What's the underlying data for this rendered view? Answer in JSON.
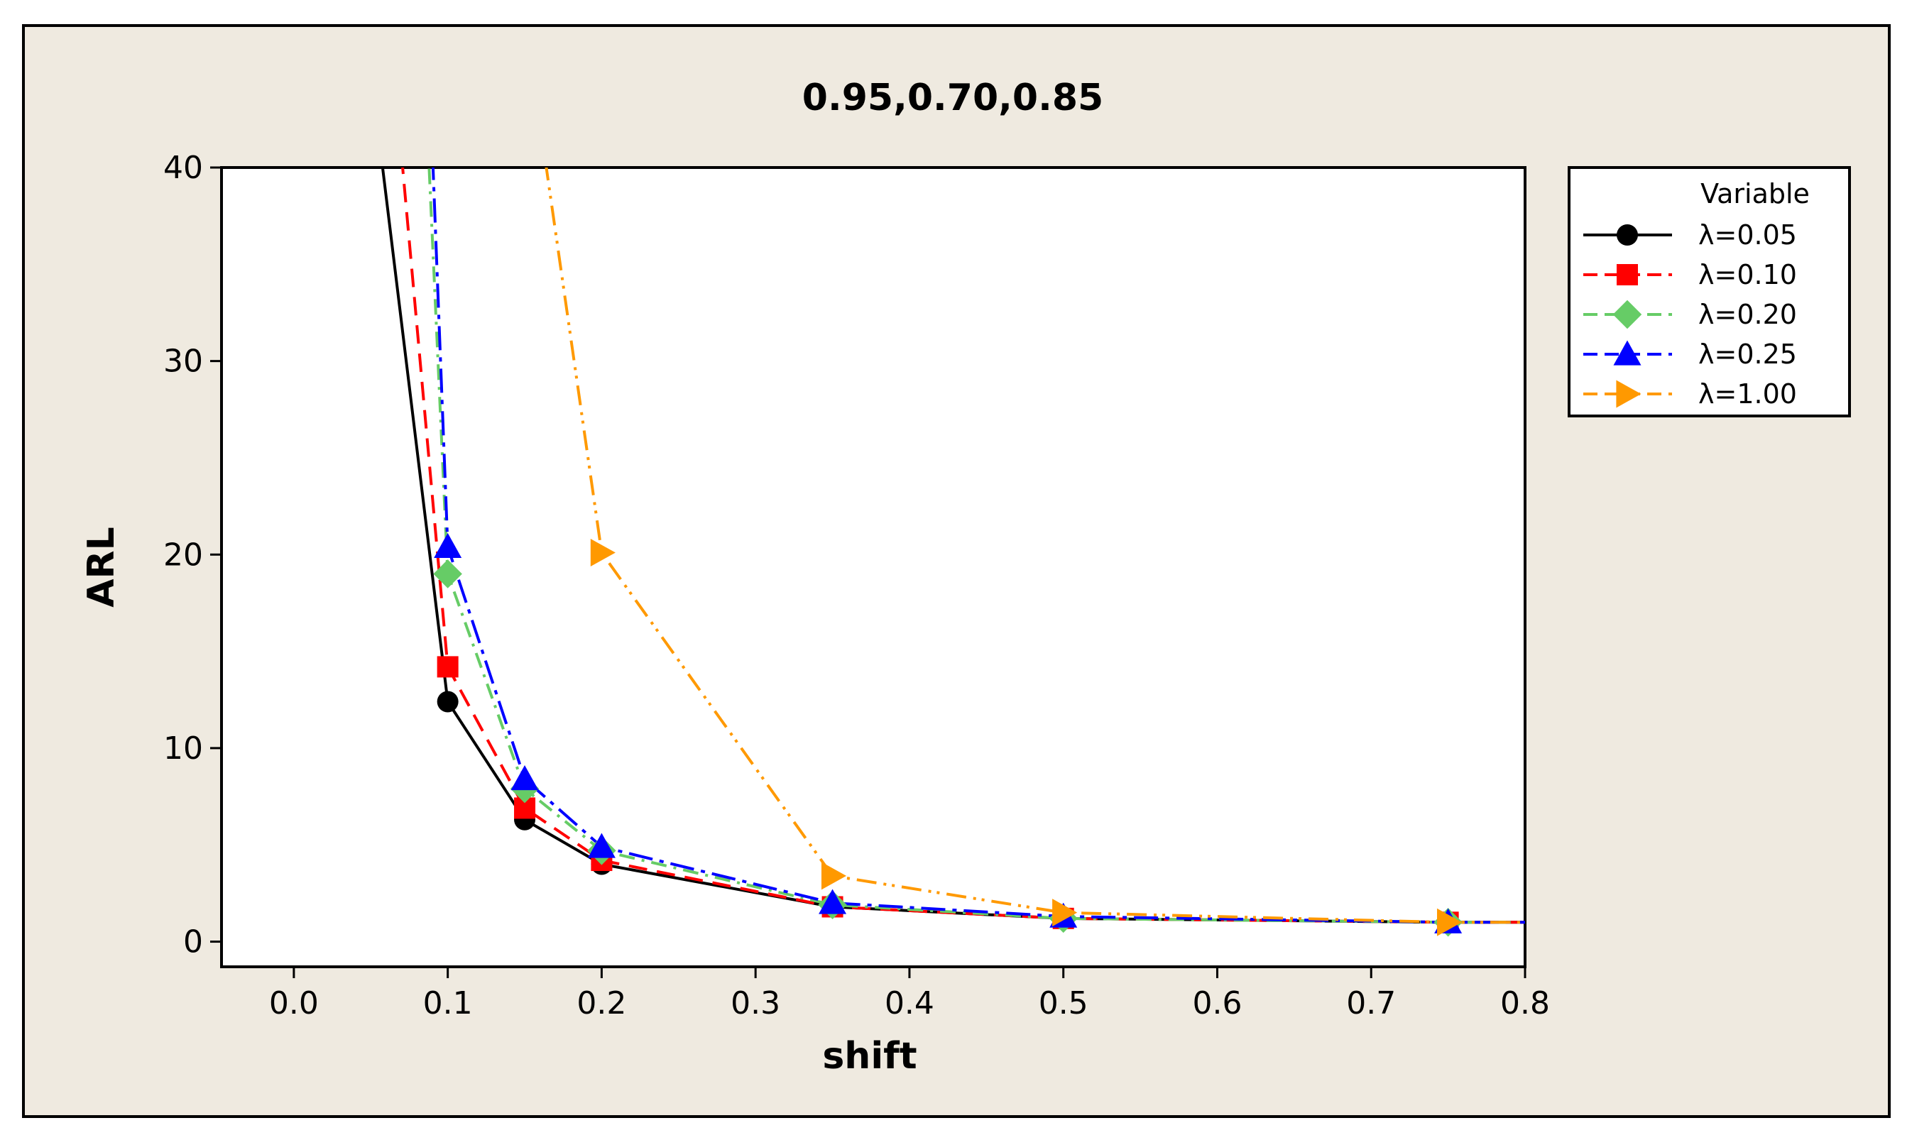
{
  "chart_data": {
    "type": "line",
    "title": "0.95,0.70,0.85",
    "xlabel": "shift",
    "ylabel": "ARL",
    "xlim": [
      -0.047,
      0.8
    ],
    "ylim": [
      -1.3,
      40
    ],
    "xticks": [
      0.0,
      0.1,
      0.2,
      0.3,
      0.4,
      0.5,
      0.6,
      0.7,
      0.8
    ],
    "xtick_labels": [
      "0.0",
      "0.1",
      "0.2",
      "0.3",
      "0.4",
      "0.5",
      "0.6",
      "0.7",
      "0.8"
    ],
    "yticks": [
      0,
      10,
      20,
      30,
      40
    ],
    "ytick_labels": [
      "0",
      "10",
      "20",
      "30",
      "40"
    ],
    "grid": false,
    "legend": {
      "title": "Variable",
      "position": "right"
    },
    "series": [
      {
        "name": "λ=0.05",
        "color": "#000000",
        "marker": "circle",
        "dash": "solid",
        "x": [
          0.05,
          0.1,
          0.15,
          0.2,
          0.35,
          0.5,
          0.75,
          0.8
        ],
        "y": [
          45,
          12.4,
          6.3,
          4.0,
          1.8,
          1.2,
          1.0,
          1.0
        ]
      },
      {
        "name": "λ=0.10",
        "color": "#ff0000",
        "marker": "square",
        "dash": "dashed",
        "x": [
          0.065,
          0.1,
          0.15,
          0.2,
          0.35,
          0.5,
          0.75,
          0.8
        ],
        "y": [
          45,
          14.2,
          6.9,
          4.2,
          1.8,
          1.2,
          1.0,
          1.0
        ]
      },
      {
        "name": "λ=0.20",
        "color": "#66cc66",
        "marker": "diamond",
        "dash": "dashdot",
        "x": [
          0.085,
          0.1,
          0.15,
          0.2,
          0.35,
          0.5,
          0.75,
          0.8
        ],
        "y": [
          45,
          19.0,
          7.9,
          4.7,
          1.9,
          1.2,
          1.0,
          1.0
        ]
      },
      {
        "name": "λ=0.25",
        "color": "#0000ff",
        "marker": "triangle-up",
        "dash": "longdashdot",
        "x": [
          0.088,
          0.1,
          0.15,
          0.2,
          0.35,
          0.5,
          0.75,
          0.8
        ],
        "y": [
          45,
          20.4,
          8.4,
          4.9,
          2.0,
          1.3,
          1.0,
          1.0
        ]
      },
      {
        "name": "λ=1.00",
        "color": "#ff9900",
        "marker": "triangle-right",
        "dash": "dashdotdot",
        "x": [
          0.155,
          0.2,
          0.35,
          0.5,
          0.75,
          0.8
        ],
        "y": [
          45,
          20.1,
          3.4,
          1.5,
          1.0,
          1.0
        ]
      }
    ]
  }
}
